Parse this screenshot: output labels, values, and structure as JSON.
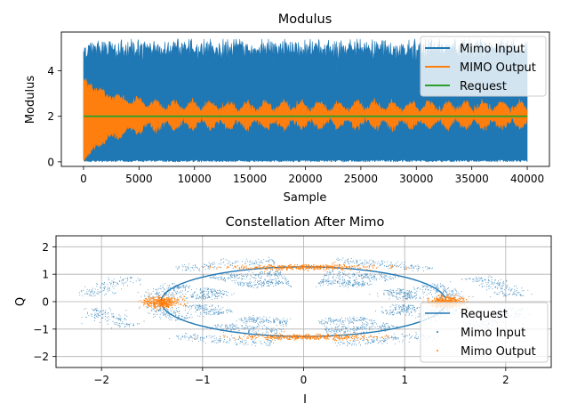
{
  "chart_data": [
    {
      "type": "line",
      "title": "Modulus",
      "xlabel": "Sample",
      "ylabel": "Modulus",
      "xlim": [
        -2000,
        42000
      ],
      "ylim": [
        -0.2,
        5.7
      ],
      "xticks": [
        0,
        5000,
        10000,
        15000,
        20000,
        25000,
        30000,
        35000,
        40000
      ],
      "yticks": [
        0,
        2,
        4
      ],
      "grid": false,
      "legend": "top-right",
      "series": [
        {
          "name": "Mimo Input",
          "color": "#1f77b4",
          "x_range": [
            0,
            40000
          ],
          "min": 0.0,
          "max": 5.4,
          "envelope_top_typical": 4.9
        },
        {
          "name": "MIMO Output",
          "color": "#ff7f0e",
          "x_range": [
            0,
            40000
          ],
          "start_max": 3.6,
          "start_min": 0.1,
          "settled_range": [
            1.5,
            2.6
          ],
          "center": 2.0
        },
        {
          "name": "Request",
          "color": "#2ca02c",
          "x": [
            0,
            40000
          ],
          "y": [
            2.0,
            2.0
          ]
        }
      ]
    },
    {
      "type": "scatter",
      "title": "Constellation After Mimo",
      "xlabel": "I",
      "ylabel": "Q",
      "xlim": [
        -2.45,
        2.45
      ],
      "ylim": [
        -2.4,
        2.4
      ],
      "xticks": [
        -2,
        -1,
        0,
        1,
        2
      ],
      "yticks": [
        -2,
        -1,
        0,
        1,
        2
      ],
      "grid": true,
      "legend": "bottom-right",
      "series": [
        {
          "name": "Request",
          "type": "circle",
          "color": "#1f77b4",
          "radius": 1.41,
          "center": [
            0,
            0
          ]
        },
        {
          "name": "Mimo Input",
          "color": "#1f77b4",
          "cluster_amplitudes": [
            1.0,
            1.4,
            2.0
          ],
          "spread": 0.09
        },
        {
          "name": "Mimo Output",
          "color": "#ff7f0e",
          "points": [
            [
              1.41,
              0
            ],
            [
              -1.41,
              0
            ],
            [
              0,
              1.41
            ],
            [
              0,
              -1.41
            ]
          ],
          "spread": 0.2
        }
      ]
    }
  ]
}
